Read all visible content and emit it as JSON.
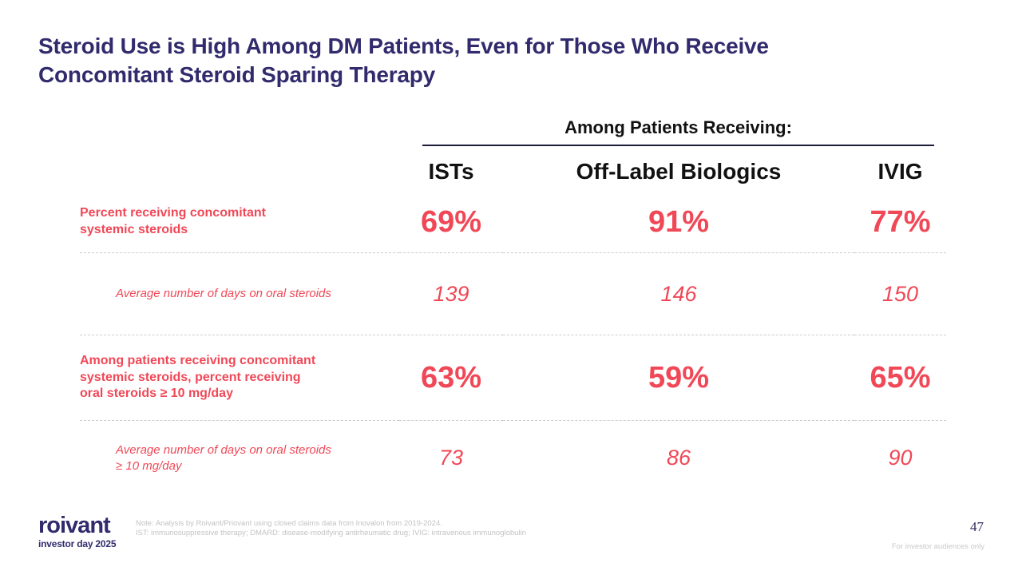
{
  "slide": {
    "title": "Steroid Use is High Among DM Patients, Even for Those Who Receive\nConcomitant Steroid Sparing Therapy",
    "page_number": "47",
    "audience_note": "For investor audiences only"
  },
  "table": {
    "group_header": "Among Patients Receiving:",
    "columns": [
      "ISTs",
      "Off-Label Biologics",
      "IVIG"
    ],
    "rows": [
      {
        "label": "Percent receiving concomitant\nsystemic steroids",
        "style": "primary",
        "values": [
          "69%",
          "91%",
          "77%"
        ]
      },
      {
        "label": "Average number of days on oral steroids",
        "style": "secondary",
        "values": [
          "139",
          "146",
          "150"
        ]
      },
      {
        "label": "Among patients receiving concomitant\nsystemic steroids, percent receiving\noral steroids ≥ 10 mg/day",
        "style": "primary",
        "values": [
          "63%",
          "59%",
          "65%"
        ]
      },
      {
        "label": "Average number of days on oral steroids\n≥ 10 mg/day",
        "style": "secondary",
        "values": [
          "73",
          "86",
          "90"
        ]
      }
    ]
  },
  "chart_data": {
    "type": "table",
    "title": "Steroid Use is High Among DM Patients, Even for Those Who Receive Concomitant Steroid Sparing Therapy",
    "group_header": "Among Patients Receiving:",
    "categories": [
      "ISTs",
      "Off-Label Biologics",
      "IVIG"
    ],
    "series": [
      {
        "name": "Percent receiving concomitant systemic steroids",
        "values": [
          "69%",
          "91%",
          "77%"
        ]
      },
      {
        "name": "Average number of days on oral steroids",
        "values": [
          139,
          146,
          150
        ]
      },
      {
        "name": "Among patients receiving concomitant systemic steroids, percent receiving oral steroids ≥ 10 mg/day",
        "values": [
          "63%",
          "59%",
          "65%"
        ]
      },
      {
        "name": "Average number of days on oral steroids ≥ 10 mg/day",
        "values": [
          73,
          86,
          90
        ]
      }
    ]
  },
  "footer": {
    "logo_text": "roivant",
    "logo_subtext": "investor day 2025",
    "notes": "Note: Analysis by Roivant/Priovant using closed claims data from Inovalon from 2019-2024.\nIST: immunosuppressive therapy; DMARD: disease-modifying antirheumatic drug; IVIG: intravenous immunoglobulin"
  },
  "colors": {
    "accent_red": "#f04857",
    "brand_navy": "#312b6d",
    "header_black": "#111111"
  }
}
